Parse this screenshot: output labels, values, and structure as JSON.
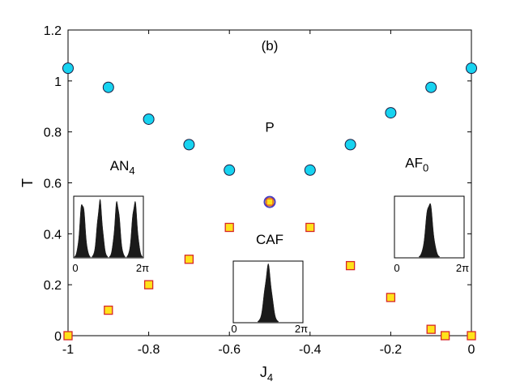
{
  "chart_data": {
    "type": "scatter",
    "title": "",
    "xlabel": "J",
    "xlabel_sub": "4",
    "ylabel": "T",
    "xlim": [
      -1,
      0
    ],
    "ylim": [
      0,
      1.2
    ],
    "xticks": [
      -1,
      -0.8,
      -0.6,
      -0.4,
      -0.2,
      0
    ],
    "xtick_labels": [
      "-1",
      "-0.8",
      "-0.6",
      "-0.4",
      "-0.2",
      "0"
    ],
    "yticks": [
      0,
      0.2,
      0.4,
      0.6,
      0.8,
      1,
      1.2
    ],
    "ytick_labels": [
      "0",
      "0.2",
      "0.4",
      "0.6",
      "0.8",
      "1",
      "1.2"
    ],
    "grid": false,
    "series": [
      {
        "marker": "circle",
        "color": "#17d3f0",
        "points": [
          [
            -1.0,
            1.05
          ],
          [
            -0.9,
            0.975
          ],
          [
            -0.8,
            0.85
          ],
          [
            -0.7,
            0.75
          ],
          [
            -0.6,
            0.65
          ],
          [
            -0.4,
            0.65
          ],
          [
            -0.3,
            0.75
          ],
          [
            -0.2,
            0.875
          ],
          [
            -0.1,
            0.975
          ],
          [
            0.0,
            1.05
          ]
        ]
      },
      {
        "marker": "square",
        "color": "#ffe31a",
        "edge_color": "#d62728",
        "points": [
          [
            -1.0,
            0.0
          ],
          [
            -0.9,
            0.1
          ],
          [
            -0.8,
            0.2
          ],
          [
            -0.7,
            0.3
          ],
          [
            -0.6,
            0.425
          ],
          [
            -0.4,
            0.425
          ],
          [
            -0.3,
            0.275
          ],
          [
            -0.2,
            0.15
          ],
          [
            -0.1,
            0.025
          ],
          [
            -0.065,
            0.0
          ],
          [
            0.0,
            0.0
          ]
        ]
      },
      {
        "marker": "circle-with-square",
        "color": "#ffe31a",
        "edge_color": "#4a3ec4",
        "points": [
          [
            -0.5,
            0.525
          ]
        ]
      }
    ],
    "annotations": [
      {
        "text": "(b)",
        "x": -0.5,
        "y": 1.12
      },
      {
        "text": "P",
        "x": -0.5,
        "y": 0.8
      },
      {
        "text": "AN",
        "sub": "4",
        "x": -0.865,
        "y": 0.65
      },
      {
        "text": "AF",
        "sub": "0",
        "x": -0.135,
        "y": 0.66
      },
      {
        "text": "CAF",
        "x": -0.5,
        "y": 0.36
      }
    ],
    "insets": [
      {
        "name": "AN4",
        "tick_left": "0",
        "tick_right": "2π",
        "peaks": [
          0.125,
          0.375,
          0.625,
          0.875
        ]
      },
      {
        "name": "AF0",
        "tick_left": "0",
        "tick_right": "2π",
        "peaks": [
          0.5
        ]
      },
      {
        "name": "CAF",
        "tick_left": "0",
        "tick_right": "2π",
        "peaks": [
          0.5
        ]
      }
    ]
  }
}
